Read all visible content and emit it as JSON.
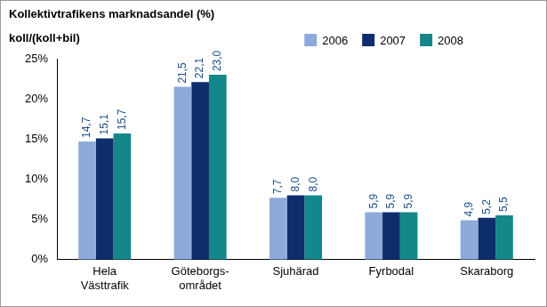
{
  "chart_data": {
    "type": "bar",
    "title": "Kollektivtrafikens marknadsandel (%)",
    "subtitle": "koll/(koll+bil)",
    "categories": [
      "Hela\nVästtrafik",
      "Göteborgs-\nområdet",
      "Sjuhärad",
      "Fyrbodal",
      "Skaraborg"
    ],
    "series": [
      {
        "name": "2006",
        "color": "#8eaadb",
        "values": [
          14.7,
          21.5,
          7.7,
          5.9,
          4.9
        ],
        "value_labels": [
          "14,7",
          "21,5",
          "7,7",
          "5,9",
          "4,9"
        ]
      },
      {
        "name": "2007",
        "color": "#0d2d6c",
        "values": [
          15.1,
          22.1,
          8.0,
          5.9,
          5.2
        ],
        "value_labels": [
          "15,1",
          "22,1",
          "8,0",
          "5,9",
          "5,2"
        ]
      },
      {
        "name": "2008",
        "color": "#14878a",
        "values": [
          15.7,
          23.0,
          8.0,
          5.9,
          5.5
        ],
        "value_labels": [
          "15,7",
          "23,0",
          "8,0",
          "5,9",
          "5,5"
        ]
      }
    ],
    "ylim": [
      0,
      25
    ],
    "yticks": [
      {
        "value": 0,
        "label": "0%"
      },
      {
        "value": 5,
        "label": "5%"
      },
      {
        "value": 10,
        "label": "10%"
      },
      {
        "value": 15,
        "label": "15%"
      },
      {
        "value": 20,
        "label": "20%"
      },
      {
        "value": 25,
        "label": "25%"
      }
    ],
    "grid": false,
    "legend": "top-right",
    "data_labels": true
  }
}
